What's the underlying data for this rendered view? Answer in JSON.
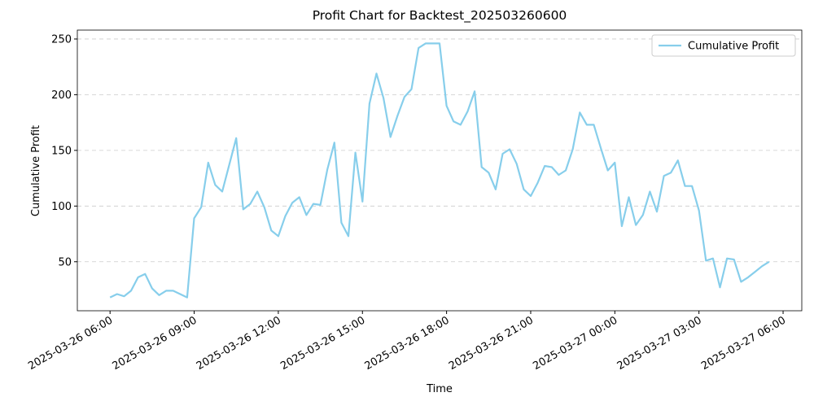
{
  "chart_data": {
    "type": "line",
    "title": "Profit Chart for Backtest_202503260600",
    "xlabel": "Time",
    "ylabel": "Cumulative Profit",
    "x": [
      "2025-03-26 06:00",
      "2025-03-26 06:15",
      "2025-03-26 06:30",
      "2025-03-26 06:45",
      "2025-03-26 07:00",
      "2025-03-26 07:15",
      "2025-03-26 07:30",
      "2025-03-26 07:45",
      "2025-03-26 08:00",
      "2025-03-26 08:15",
      "2025-03-26 08:30",
      "2025-03-26 08:45",
      "2025-03-26 09:00",
      "2025-03-26 09:15",
      "2025-03-26 09:30",
      "2025-03-26 09:45",
      "2025-03-26 10:00",
      "2025-03-26 10:15",
      "2025-03-26 10:30",
      "2025-03-26 10:45",
      "2025-03-26 11:00",
      "2025-03-26 11:15",
      "2025-03-26 11:30",
      "2025-03-26 11:45",
      "2025-03-26 12:00",
      "2025-03-26 12:15",
      "2025-03-26 12:30",
      "2025-03-26 12:45",
      "2025-03-26 13:00",
      "2025-03-26 13:15",
      "2025-03-26 13:30",
      "2025-03-26 13:45",
      "2025-03-26 14:00",
      "2025-03-26 14:15",
      "2025-03-26 14:30",
      "2025-03-26 14:45",
      "2025-03-26 15:00",
      "2025-03-26 15:15",
      "2025-03-26 15:30",
      "2025-03-26 15:45",
      "2025-03-26 16:00",
      "2025-03-26 16:15",
      "2025-03-26 16:30",
      "2025-03-26 16:45",
      "2025-03-26 17:00",
      "2025-03-26 17:15",
      "2025-03-26 17:30",
      "2025-03-26 17:45",
      "2025-03-26 18:00",
      "2025-03-26 18:15",
      "2025-03-26 18:30",
      "2025-03-26 18:45",
      "2025-03-26 19:00",
      "2025-03-26 19:15",
      "2025-03-26 19:30",
      "2025-03-26 19:45",
      "2025-03-26 20:00",
      "2025-03-26 20:15",
      "2025-03-26 20:30",
      "2025-03-26 20:45",
      "2025-03-26 21:00",
      "2025-03-26 21:15",
      "2025-03-26 21:30",
      "2025-03-26 21:45",
      "2025-03-26 22:00",
      "2025-03-26 22:15",
      "2025-03-26 22:30",
      "2025-03-26 22:45",
      "2025-03-26 23:00",
      "2025-03-26 23:15",
      "2025-03-26 23:30",
      "2025-03-26 23:45",
      "2025-03-27 00:00",
      "2025-03-27 00:15",
      "2025-03-27 00:30",
      "2025-03-27 00:45",
      "2025-03-27 01:00",
      "2025-03-27 01:15",
      "2025-03-27 01:30",
      "2025-03-27 01:45",
      "2025-03-27 02:00",
      "2025-03-27 02:15",
      "2025-03-27 02:30",
      "2025-03-27 02:45",
      "2025-03-27 03:00",
      "2025-03-27 03:15",
      "2025-03-27 03:30",
      "2025-03-27 03:45",
      "2025-03-27 04:00",
      "2025-03-27 04:15",
      "2025-03-27 04:30",
      "2025-03-27 04:45",
      "2025-03-27 05:00",
      "2025-03-27 05:15",
      "2025-03-27 05:30"
    ],
    "series": [
      {
        "name": "Cumulative Profit",
        "color": "#87ceeb",
        "values": [
          18,
          21,
          19,
          24,
          36,
          39,
          26,
          20,
          24,
          24,
          21,
          18,
          89,
          99,
          139,
          119,
          113,
          137,
          161,
          97,
          102,
          113,
          99,
          78,
          73,
          91,
          103,
          108,
          92,
          102,
          101,
          133,
          157,
          85,
          73,
          148,
          104,
          192,
          219,
          197,
          162,
          181,
          198,
          205,
          242,
          246,
          246,
          246,
          190,
          176,
          173,
          185,
          203,
          135,
          130,
          115,
          147,
          151,
          138,
          115,
          109,
          121,
          136,
          135,
          128,
          132,
          151,
          184,
          173,
          173,
          152,
          132,
          139,
          82,
          108,
          83,
          92,
          113,
          95,
          127,
          130,
          141,
          118,
          118,
          96,
          51,
          53,
          27,
          53,
          52,
          32,
          36,
          41,
          46,
          50
        ]
      }
    ],
    "xlim": [
      "2025-03-26 04:50",
      "2025-03-27 06:40"
    ],
    "xticks": [
      "2025-03-26 06:00",
      "2025-03-26 09:00",
      "2025-03-26 12:00",
      "2025-03-26 15:00",
      "2025-03-26 18:00",
      "2025-03-26 21:00",
      "2025-03-27 00:00",
      "2025-03-27 03:00",
      "2025-03-27 06:00"
    ],
    "ylim": [
      6,
      258
    ],
    "yticks": [
      50,
      100,
      150,
      200,
      250
    ],
    "grid": true,
    "legend": "upper right"
  }
}
